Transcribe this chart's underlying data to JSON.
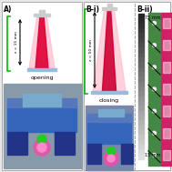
{
  "bg_color": "#e8e8e8",
  "panel_bg": "#ffffff",
  "panel_A": {
    "label": "A)",
    "opening_text": "opening",
    "z_text": "z = 15 mm",
    "beam_pink": "#ffbbcc",
    "beam_red": "#dd0033",
    "bracket_color": "#00bb00",
    "lens_color": "#cccccc",
    "platform_color": "#99bbdd",
    "photo_bg": "#aabbcc",
    "device_blue": "#3366bb",
    "device_dark": "#224499",
    "green_dot": "#22cc22",
    "pink_glow": "#ff44aa"
  },
  "panel_Bi": {
    "label": "B-i)",
    "closing_text": "closing",
    "z_text": "z = 50 mm",
    "beam_pink": "#ffbbcc",
    "beam_red": "#cc0033",
    "bracket_color": "#00bb00",
    "lens_color": "#cccccc",
    "platform_color": "#99bbdd",
    "photo_bg": "#aabbcc",
    "device_blue": "#3366bb",
    "device_dark": "#224499",
    "green_dot": "#22cc22",
    "pink_glow": "#ff44aa"
  },
  "panel_Bii": {
    "label": "B-ii)",
    "top_text": "75 mm",
    "bottom_text": "15 mm",
    "dashed_color": "#aaaaaa",
    "arrow_top_color": "#111111",
    "arrow_bot_color": "#cccccc",
    "num_rows": 7,
    "green_color": "#448844",
    "pink_color": "#cc2266"
  }
}
